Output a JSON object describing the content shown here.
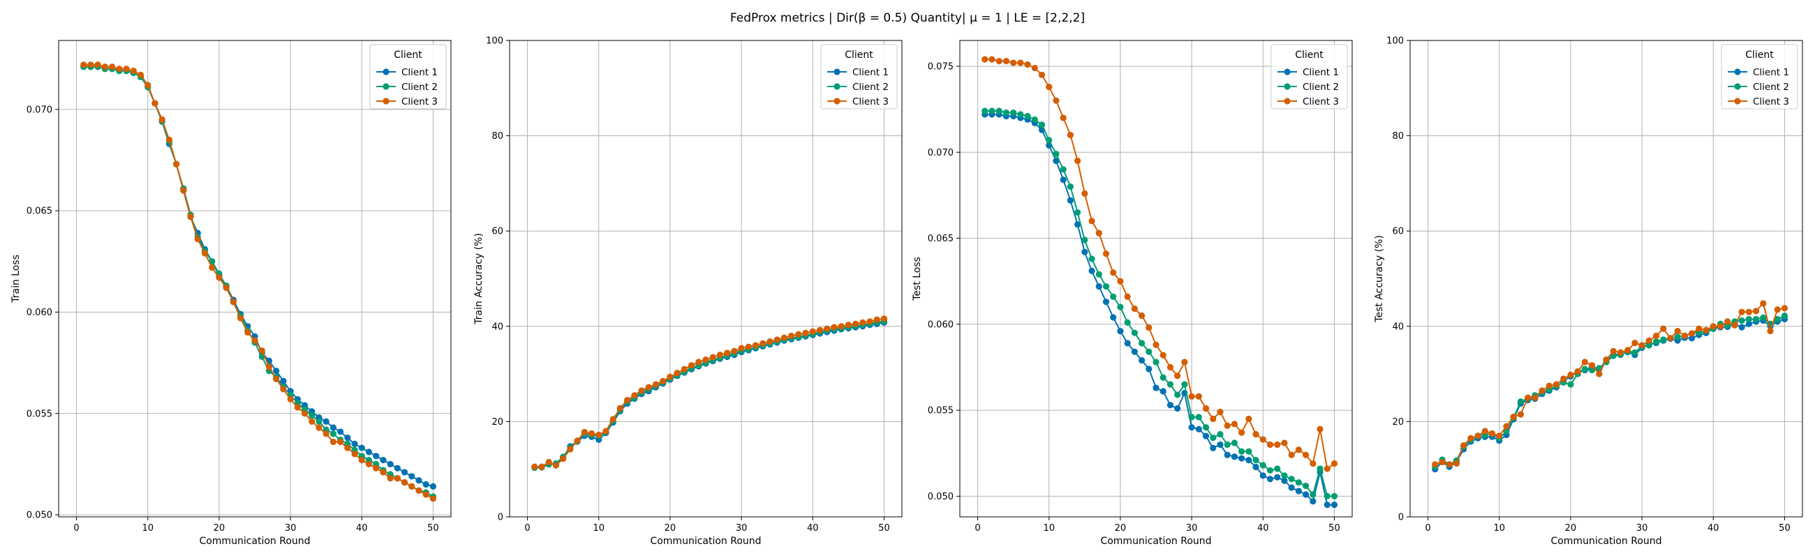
{
  "figure": {
    "suptitle": "FedProx metrics | Dir(β = 0.5) Quantity| μ = 1 | LE = [2,2,2]"
  },
  "chart_data": [
    {
      "type": "line",
      "title": "",
      "xlabel": "Communication Round",
      "ylabel": "Train Loss",
      "xlim": [
        -2.5,
        52.5
      ],
      "ylim": [
        0.0499,
        0.0734
      ],
      "xticks": [
        0,
        10,
        20,
        30,
        40,
        50
      ],
      "yticks": [
        0.05,
        0.055,
        0.06,
        0.065,
        0.07
      ],
      "ytick_labels": [
        "0.050",
        "0.055",
        "0.060",
        "0.065",
        "0.070"
      ],
      "grid": true,
      "legend": {
        "title": "Client",
        "position": "top-right"
      },
      "x": [
        1,
        2,
        3,
        4,
        5,
        6,
        7,
        8,
        9,
        10,
        11,
        12,
        13,
        14,
        15,
        16,
        17,
        18,
        19,
        20,
        21,
        22,
        23,
        24,
        25,
        26,
        27,
        28,
        29,
        30,
        31,
        32,
        33,
        34,
        35,
        36,
        37,
        38,
        39,
        40,
        41,
        42,
        43,
        44,
        45,
        46,
        47,
        48,
        49,
        50
      ],
      "series": [
        {
          "name": "Client 1",
          "color": "#0072B2",
          "values": [
            0.0721,
            0.0721,
            0.0721,
            0.072,
            0.072,
            0.0719,
            0.0719,
            0.0718,
            0.0716,
            0.0711,
            0.0703,
            0.0694,
            0.0683,
            0.0673,
            0.066,
            0.0647,
            0.0639,
            0.0631,
            0.0625,
            0.0618,
            0.0613,
            0.0606,
            0.0599,
            0.0593,
            0.0588,
            0.058,
            0.0576,
            0.0571,
            0.0566,
            0.0561,
            0.0557,
            0.0554,
            0.0551,
            0.0548,
            0.0546,
            0.0543,
            0.0541,
            0.0538,
            0.0535,
            0.0533,
            0.0531,
            0.0529,
            0.0527,
            0.0525,
            0.0523,
            0.0521,
            0.0519,
            0.0517,
            0.0515,
            0.0514
          ]
        },
        {
          "name": "Client 2",
          "color": "#009E73",
          "values": [
            0.0721,
            0.0721,
            0.0721,
            0.072,
            0.072,
            0.0719,
            0.0719,
            0.0718,
            0.0716,
            0.0711,
            0.0703,
            0.0694,
            0.0684,
            0.0673,
            0.0661,
            0.0648,
            0.0637,
            0.063,
            0.0625,
            0.0619,
            0.0613,
            0.0605,
            0.0598,
            0.0591,
            0.0585,
            0.0578,
            0.0571,
            0.0568,
            0.0563,
            0.0559,
            0.0555,
            0.0552,
            0.0549,
            0.0546,
            0.0542,
            0.054,
            0.0537,
            0.0535,
            0.0532,
            0.0529,
            0.0527,
            0.0525,
            0.0522,
            0.052,
            0.0518,
            0.0516,
            0.0514,
            0.0512,
            0.0511,
            0.0509
          ]
        },
        {
          "name": "Client 3",
          "color": "#D55E00",
          "values": [
            0.0722,
            0.0722,
            0.0722,
            0.0721,
            0.0721,
            0.072,
            0.072,
            0.0719,
            0.0717,
            0.0712,
            0.0703,
            0.0695,
            0.0685,
            0.0673,
            0.066,
            0.0647,
            0.0636,
            0.0629,
            0.0622,
            0.0617,
            0.0612,
            0.0605,
            0.0597,
            0.059,
            0.0586,
            0.0581,
            0.0573,
            0.0567,
            0.0562,
            0.0557,
            0.0553,
            0.055,
            0.0546,
            0.0543,
            0.054,
            0.0536,
            0.0536,
            0.0533,
            0.053,
            0.0527,
            0.0525,
            0.0523,
            0.0521,
            0.0518,
            0.0518,
            0.0516,
            0.0514,
            0.0512,
            0.051,
            0.0508
          ]
        }
      ]
    },
    {
      "type": "line",
      "title": "",
      "xlabel": "Communication Round",
      "ylabel": "Train Accuracy (%)",
      "xlim": [
        -2.5,
        52.5
      ],
      "ylim": [
        0,
        100
      ],
      "xticks": [
        0,
        10,
        20,
        30,
        40,
        50
      ],
      "yticks": [
        0,
        20,
        40,
        60,
        80,
        100
      ],
      "ytick_labels": [
        "0",
        "20",
        "40",
        "60",
        "80",
        "100"
      ],
      "grid": true,
      "legend": {
        "title": "Client",
        "position": "top-right"
      },
      "x": [
        1,
        2,
        3,
        4,
        5,
        6,
        7,
        8,
        9,
        10,
        11,
        12,
        13,
        14,
        15,
        16,
        17,
        18,
        19,
        20,
        21,
        22,
        23,
        24,
        25,
        26,
        27,
        28,
        29,
        30,
        31,
        32,
        33,
        34,
        35,
        36,
        37,
        38,
        39,
        40,
        41,
        42,
        43,
        44,
        45,
        46,
        47,
        48,
        49,
        50
      ],
      "series": [
        {
          "name": "Client 1",
          "color": "#0072B2",
          "values": [
            10.5,
            10.5,
            11.2,
            11.0,
            12.5,
            14.8,
            15.8,
            17.0,
            16.8,
            16.2,
            17.6,
            19.8,
            22.2,
            23.8,
            24.8,
            25.8,
            26.4,
            27.2,
            28.0,
            28.8,
            29.6,
            30.3,
            31.0,
            31.6,
            32.2,
            32.7,
            33.2,
            33.6,
            34.0,
            34.6,
            35.0,
            35.4,
            35.8,
            36.2,
            36.6,
            37.0,
            37.3,
            37.6,
            37.9,
            38.2,
            38.5,
            38.8,
            39.1,
            39.4,
            39.6,
            39.8,
            40.0,
            40.3,
            40.5,
            40.8
          ]
        },
        {
          "name": "Client 2",
          "color": "#009E73",
          "values": [
            10.3,
            10.4,
            11.0,
            11.2,
            12.6,
            14.5,
            15.8,
            17.5,
            17.2,
            17.0,
            17.8,
            20.2,
            22.5,
            24.2,
            25.0,
            26.2,
            26.8,
            27.5,
            28.2,
            29.0,
            29.8,
            30.5,
            31.2,
            31.8,
            32.4,
            32.9,
            33.4,
            33.9,
            34.3,
            34.9,
            35.2,
            35.6,
            36.0,
            36.4,
            36.8,
            37.2,
            37.5,
            37.8,
            38.1,
            38.4,
            38.8,
            39.1,
            39.4,
            39.7,
            39.9,
            40.1,
            40.3,
            40.6,
            40.9,
            41.1
          ]
        },
        {
          "name": "Client 3",
          "color": "#D55E00",
          "values": [
            10.5,
            10.5,
            11.5,
            10.8,
            12.2,
            14.2,
            16.0,
            17.8,
            17.5,
            17.2,
            18.0,
            20.5,
            22.8,
            24.5,
            25.5,
            26.5,
            27.2,
            27.8,
            28.5,
            29.4,
            30.2,
            31.0,
            31.8,
            32.5,
            33.0,
            33.5,
            34.0,
            34.4,
            34.8,
            35.4,
            35.7,
            36.0,
            36.4,
            36.8,
            37.2,
            37.6,
            38.0,
            38.3,
            38.6,
            38.9,
            39.2,
            39.5,
            39.8,
            40.0,
            40.3,
            40.5,
            40.8,
            41.0,
            41.4,
            41.6
          ]
        }
      ]
    },
    {
      "type": "line",
      "title": "",
      "xlabel": "Communication Round",
      "ylabel": "Test Loss",
      "xlim": [
        -2.5,
        52.5
      ],
      "ylim": [
        0.0488,
        0.0765
      ],
      "xticks": [
        0,
        10,
        20,
        30,
        40,
        50
      ],
      "yticks": [
        0.05,
        0.055,
        0.06,
        0.065,
        0.07,
        0.075
      ],
      "ytick_labels": [
        "0.050",
        "0.055",
        "0.060",
        "0.065",
        "0.070",
        "0.075"
      ],
      "grid": true,
      "legend": {
        "title": "Client",
        "position": "top-right"
      },
      "x": [
        1,
        2,
        3,
        4,
        5,
        6,
        7,
        8,
        9,
        10,
        11,
        12,
        13,
        14,
        15,
        16,
        17,
        18,
        19,
        20,
        21,
        22,
        23,
        24,
        25,
        26,
        27,
        28,
        29,
        30,
        31,
        32,
        33,
        34,
        35,
        36,
        37,
        38,
        39,
        40,
        41,
        42,
        43,
        44,
        45,
        46,
        47,
        48,
        49,
        50
      ],
      "series": [
        {
          "name": "Client 1",
          "color": "#0072B2",
          "values": [
            0.0722,
            0.0722,
            0.0722,
            0.0721,
            0.0721,
            0.072,
            0.0719,
            0.0717,
            0.0713,
            0.0704,
            0.0695,
            0.0684,
            0.0672,
            0.0658,
            0.0642,
            0.0631,
            0.0622,
            0.0613,
            0.0604,
            0.0596,
            0.0589,
            0.0584,
            0.0579,
            0.0574,
            0.0563,
            0.0561,
            0.0553,
            0.0551,
            0.056,
            0.054,
            0.0539,
            0.0535,
            0.0528,
            0.053,
            0.0524,
            0.0523,
            0.0522,
            0.0521,
            0.0517,
            0.0512,
            0.051,
            0.0511,
            0.0509,
            0.0505,
            0.0503,
            0.0501,
            0.0497,
            0.0514,
            0.0495,
            0.0495
          ]
        },
        {
          "name": "Client 2",
          "color": "#009E73",
          "values": [
            0.0724,
            0.0724,
            0.0724,
            0.0723,
            0.0723,
            0.0722,
            0.0721,
            0.0719,
            0.0716,
            0.0707,
            0.0699,
            0.069,
            0.068,
            0.0665,
            0.0649,
            0.0638,
            0.0629,
            0.0622,
            0.0616,
            0.061,
            0.0601,
            0.0595,
            0.0589,
            0.0584,
            0.0578,
            0.0569,
            0.0565,
            0.0559,
            0.0565,
            0.0546,
            0.0546,
            0.054,
            0.0534,
            0.0536,
            0.053,
            0.0531,
            0.0526,
            0.0526,
            0.0521,
            0.0518,
            0.0515,
            0.0516,
            0.0512,
            0.051,
            0.0508,
            0.0506,
            0.0501,
            0.0516,
            0.05,
            0.05
          ]
        },
        {
          "name": "Client 3",
          "color": "#D55E00",
          "values": [
            0.0754,
            0.0754,
            0.0753,
            0.0753,
            0.0752,
            0.0752,
            0.0751,
            0.0749,
            0.0745,
            0.0738,
            0.073,
            0.072,
            0.071,
            0.0695,
            0.0676,
            0.066,
            0.0653,
            0.0641,
            0.063,
            0.0625,
            0.0616,
            0.0609,
            0.0605,
            0.0598,
            0.0588,
            0.0582,
            0.0575,
            0.057,
            0.0578,
            0.0558,
            0.0558,
            0.0551,
            0.0545,
            0.0549,
            0.0541,
            0.0542,
            0.0537,
            0.0545,
            0.0536,
            0.0533,
            0.053,
            0.053,
            0.0531,
            0.0524,
            0.0527,
            0.0524,
            0.0519,
            0.0539,
            0.0516,
            0.0519
          ]
        }
      ]
    },
    {
      "type": "line",
      "title": "",
      "xlabel": "Communication Round",
      "ylabel": "Test Accuracy (%)",
      "xlim": [
        -2.5,
        52.5
      ],
      "ylim": [
        0,
        100
      ],
      "xticks": [
        0,
        10,
        20,
        30,
        40,
        50
      ],
      "yticks": [
        0,
        20,
        40,
        60,
        80,
        100
      ],
      "ytick_labels": [
        "0",
        "20",
        "40",
        "60",
        "80",
        "100"
      ],
      "grid": true,
      "legend": {
        "title": "Client",
        "position": "top-right"
      },
      "x": [
        1,
        2,
        3,
        4,
        5,
        6,
        7,
        8,
        9,
        10,
        11,
        12,
        13,
        14,
        15,
        16,
        17,
        18,
        19,
        20,
        21,
        22,
        23,
        24,
        25,
        26,
        27,
        28,
        29,
        30,
        31,
        32,
        33,
        34,
        35,
        36,
        37,
        38,
        39,
        40,
        41,
        42,
        43,
        44,
        45,
        46,
        47,
        48,
        49,
        50
      ],
      "series": [
        {
          "name": "Client 1",
          "color": "#0072B2",
          "values": [
            10.0,
            11.5,
            10.5,
            11.5,
            14.2,
            15.8,
            16.5,
            16.8,
            16.8,
            16.0,
            17.2,
            20.5,
            23.8,
            24.5,
            24.8,
            25.8,
            26.5,
            27.2,
            28.5,
            29.5,
            30.5,
            30.8,
            31.5,
            31.0,
            32.8,
            34.0,
            34.2,
            34.6,
            34.0,
            35.5,
            36.2,
            36.5,
            37.0,
            37.4,
            37.0,
            37.6,
            37.5,
            38.2,
            38.6,
            39.5,
            39.8,
            39.9,
            40.5,
            39.8,
            40.5,
            41.0,
            41.2,
            40.0,
            41.0,
            41.5
          ]
        },
        {
          "name": "Client 2",
          "color": "#009E73",
          "values": [
            10.5,
            12.0,
            11.0,
            11.8,
            14.8,
            16.2,
            17.0,
            17.2,
            17.5,
            16.5,
            18.0,
            20.8,
            24.2,
            24.8,
            25.5,
            26.2,
            26.8,
            27.5,
            28.2,
            27.8,
            30.0,
            31.0,
            30.8,
            31.2,
            32.5,
            33.8,
            34.0,
            34.8,
            34.5,
            35.8,
            36.0,
            36.8,
            37.2,
            37.5,
            37.8,
            38.0,
            38.5,
            38.8,
            39.0,
            39.5,
            40.5,
            40.2,
            41.0,
            41.2,
            41.5,
            41.5,
            41.8,
            40.5,
            41.5,
            42.2
          ]
        },
        {
          "name": "Client 3",
          "color": "#D55E00",
          "values": [
            11.0,
            11.5,
            11.0,
            11.2,
            15.0,
            16.5,
            17.0,
            18.0,
            17.5,
            17.0,
            19.0,
            21.0,
            21.5,
            25.0,
            25.0,
            26.5,
            27.5,
            27.8,
            29.0,
            29.8,
            30.5,
            32.5,
            31.8,
            30.0,
            33.0,
            34.8,
            34.5,
            35.0,
            36.5,
            36.0,
            37.0,
            38.0,
            39.5,
            37.5,
            39.0,
            38.0,
            38.5,
            39.5,
            39.2,
            40.0,
            40.0,
            41.0,
            40.2,
            43.0,
            43.0,
            43.2,
            44.8,
            39.0,
            43.5,
            43.8
          ]
        }
      ]
    }
  ]
}
